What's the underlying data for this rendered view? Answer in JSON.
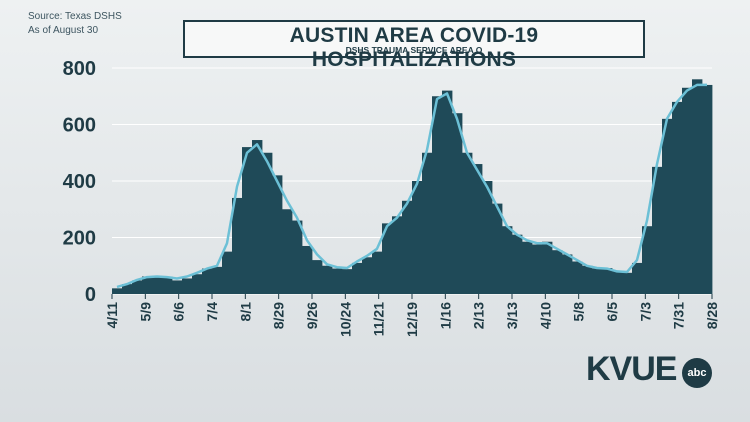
{
  "source": {
    "line1": "Source: Texas DSHS",
    "line2": "As of August 30"
  },
  "logo": {
    "text": "KVUE",
    "badge": "abc"
  },
  "colors": {
    "bar": "#1f4a58",
    "line": "#6cc0d6",
    "text": "#1f3b45",
    "grid": "#ffffff"
  },
  "chart_data": {
    "type": "bar",
    "title": "AUSTIN AREA COVID-19 HOSPITALIZATIONS",
    "subtitle": "DSHS TRAUMA SERVICE AREA O",
    "xlabel": "",
    "ylabel": "",
    "ylim": [
      0,
      800
    ],
    "yticks": [
      0,
      200,
      400,
      600,
      800
    ],
    "grid": true,
    "x_tick_labels": [
      "4/11",
      "5/9",
      "6/6",
      "7/4",
      "8/1",
      "8/29",
      "9/26",
      "10/24",
      "11/21",
      "12/19",
      "1/16",
      "2/13",
      "3/13",
      "4/10",
      "5/8",
      "6/5",
      "7/3",
      "7/31",
      "8/28"
    ],
    "series": [
      {
        "kind": "bar",
        "points": [
          [
            0,
            20
          ],
          [
            1,
            35
          ],
          [
            2,
            48
          ],
          [
            3,
            62
          ],
          [
            4,
            60
          ],
          [
            5,
            62
          ],
          [
            6,
            48
          ],
          [
            7,
            55
          ],
          [
            8,
            70
          ],
          [
            9,
            90
          ],
          [
            10,
            96
          ],
          [
            11,
            150
          ],
          [
            12,
            340
          ],
          [
            13,
            520
          ],
          [
            14,
            545
          ],
          [
            15,
            500
          ],
          [
            16,
            420
          ],
          [
            17,
            300
          ],
          [
            18,
            260
          ],
          [
            19,
            170
          ],
          [
            20,
            120
          ],
          [
            21,
            100
          ],
          [
            22,
            90
          ],
          [
            23,
            88
          ],
          [
            24,
            110
          ],
          [
            25,
            130
          ],
          [
            26,
            150
          ],
          [
            27,
            250
          ],
          [
            28,
            275
          ],
          [
            29,
            330
          ],
          [
            30,
            400
          ],
          [
            31,
            500
          ],
          [
            32,
            700
          ],
          [
            33,
            720
          ],
          [
            34,
            640
          ],
          [
            35,
            500
          ],
          [
            36,
            460
          ],
          [
            37,
            400
          ],
          [
            38,
            320
          ],
          [
            39,
            240
          ],
          [
            40,
            210
          ],
          [
            41,
            185
          ],
          [
            42,
            175
          ],
          [
            43,
            185
          ],
          [
            44,
            155
          ],
          [
            45,
            140
          ],
          [
            46,
            115
          ],
          [
            47,
            100
          ],
          [
            48,
            90
          ],
          [
            49,
            92
          ],
          [
            50,
            80
          ],
          [
            51,
            75
          ],
          [
            52,
            110
          ],
          [
            53,
            240
          ],
          [
            54,
            450
          ],
          [
            55,
            620
          ],
          [
            56,
            680
          ],
          [
            57,
            730
          ],
          [
            58,
            760
          ],
          [
            59,
            740
          ]
        ]
      },
      {
        "kind": "line",
        "points": [
          [
            0,
            25
          ],
          [
            1,
            35
          ],
          [
            2,
            50
          ],
          [
            3,
            60
          ],
          [
            4,
            62
          ],
          [
            5,
            60
          ],
          [
            6,
            55
          ],
          [
            7,
            62
          ],
          [
            8,
            75
          ],
          [
            9,
            90
          ],
          [
            10,
            100
          ],
          [
            11,
            180
          ],
          [
            12,
            380
          ],
          [
            13,
            500
          ],
          [
            14,
            530
          ],
          [
            15,
            470
          ],
          [
            16,
            400
          ],
          [
            17,
            330
          ],
          [
            18,
            270
          ],
          [
            19,
            190
          ],
          [
            20,
            140
          ],
          [
            21,
            105
          ],
          [
            22,
            95
          ],
          [
            23,
            92
          ],
          [
            24,
            115
          ],
          [
            25,
            135
          ],
          [
            26,
            160
          ],
          [
            27,
            240
          ],
          [
            28,
            270
          ],
          [
            29,
            320
          ],
          [
            30,
            390
          ],
          [
            31,
            510
          ],
          [
            32,
            690
          ],
          [
            33,
            710
          ],
          [
            34,
            620
          ],
          [
            35,
            500
          ],
          [
            36,
            440
          ],
          [
            37,
            380
          ],
          [
            38,
            310
          ],
          [
            39,
            240
          ],
          [
            40,
            210
          ],
          [
            41,
            190
          ],
          [
            42,
            180
          ],
          [
            43,
            180
          ],
          [
            44,
            160
          ],
          [
            45,
            140
          ],
          [
            46,
            120
          ],
          [
            47,
            100
          ],
          [
            48,
            92
          ],
          [
            49,
            90
          ],
          [
            50,
            80
          ],
          [
            51,
            78
          ],
          [
            52,
            120
          ],
          [
            53,
            260
          ],
          [
            54,
            460
          ],
          [
            55,
            620
          ],
          [
            56,
            680
          ],
          [
            57,
            720
          ],
          [
            58,
            740
          ],
          [
            59,
            740
          ]
        ]
      }
    ]
  }
}
